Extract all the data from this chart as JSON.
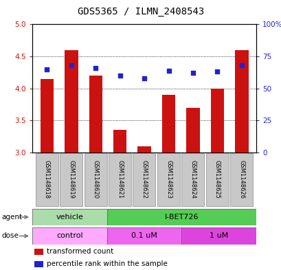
{
  "title": "GDS5365 / ILMN_2408543",
  "samples": [
    "GSM1148618",
    "GSM1148619",
    "GSM1148620",
    "GSM1148621",
    "GSM1148622",
    "GSM1148623",
    "GSM1148624",
    "GSM1148625",
    "GSM1148626"
  ],
  "bar_values": [
    4.15,
    4.6,
    4.2,
    3.35,
    3.1,
    3.9,
    3.7,
    4.0,
    4.6
  ],
  "dot_percentiles": [
    65,
    68,
    66,
    60,
    58,
    64,
    62,
    63,
    68
  ],
  "ylim_left": [
    3.0,
    5.0
  ],
  "ylim_right": [
    0,
    100
  ],
  "yticks_left": [
    3.0,
    3.5,
    4.0,
    4.5,
    5.0
  ],
  "yticks_right": [
    0,
    25,
    50,
    75,
    100
  ],
  "ytick_labels_right": [
    "0",
    "25",
    "50",
    "75",
    "100%"
  ],
  "bar_color": "#CC1111",
  "dot_color": "#2222CC",
  "agent_groups": [
    {
      "label": "vehicle",
      "start": 0,
      "end": 3,
      "color": "#AADDAA"
    },
    {
      "label": "I-BET726",
      "start": 3,
      "end": 9,
      "color": "#55CC55"
    }
  ],
  "dose_groups": [
    {
      "label": "control",
      "start": 0,
      "end": 3,
      "color": "#FFAAFF"
    },
    {
      "label": "0.1 uM",
      "start": 3,
      "end": 6,
      "color": "#EE66EE"
    },
    {
      "label": "1 uM",
      "start": 6,
      "end": 9,
      "color": "#DD44DD"
    }
  ],
  "legend_items": [
    {
      "label": "transformed count",
      "color": "#CC1111"
    },
    {
      "label": "percentile rank within the sample",
      "color": "#2222CC"
    }
  ],
  "title_fontsize": 10,
  "tick_fontsize": 7.5,
  "bar_width": 0.55
}
